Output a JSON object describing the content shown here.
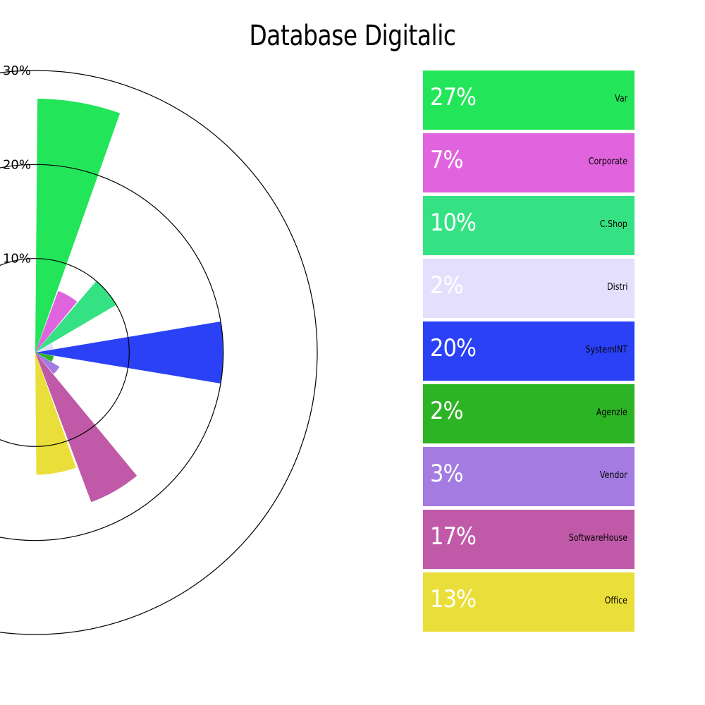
{
  "title": "Database Digitalic",
  "chart_data": {
    "type": "polar-area",
    "title": "Database Digitalic",
    "r_ticks": [
      10,
      20,
      30
    ],
    "r_tick_labels": [
      "10%",
      "20%",
      "30%"
    ],
    "r_max": 30,
    "series": [
      {
        "name": "Var",
        "value": 27,
        "label": "27%",
        "color": "#23e55a"
      },
      {
        "name": "Corporate",
        "value": 7,
        "label": "7%",
        "color": "#e064de"
      },
      {
        "name": "C.Shop",
        "value": 10,
        "label": "10%",
        "color": "#34e183"
      },
      {
        "name": "Distri",
        "value": 2,
        "label": "2%",
        "color": "#e4dffd"
      },
      {
        "name": "SystemINT",
        "value": 20,
        "label": "20%",
        "color": "#2b41f6"
      },
      {
        "name": "Agenzie",
        "value": 2,
        "label": "2%",
        "color": "#2db425"
      },
      {
        "name": "Vendor",
        "value": 3,
        "label": "3%",
        "color": "#a47be0"
      },
      {
        "name": "SoftwareHouse",
        "value": 17,
        "label": "17%",
        "color": "#c05aa8"
      },
      {
        "name": "Office",
        "value": 13,
        "label": "13%",
        "color": "#eadf3a"
      }
    ]
  }
}
